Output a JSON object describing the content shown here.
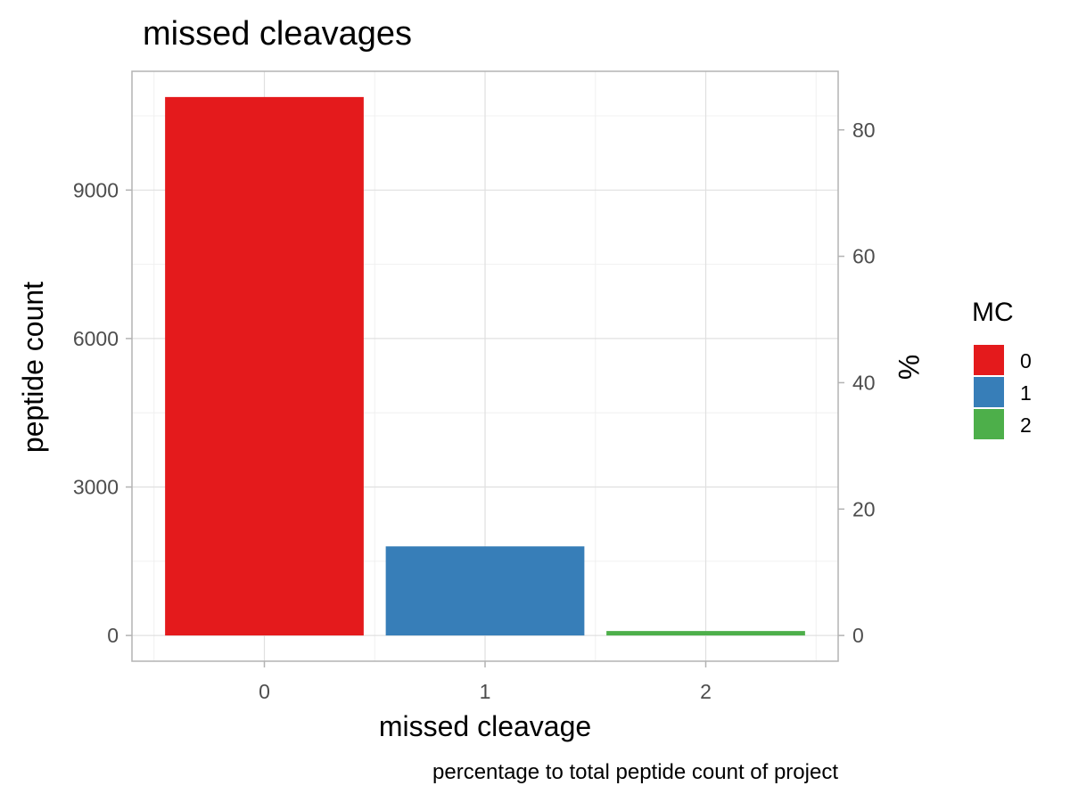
{
  "chart_data": {
    "type": "bar",
    "title": "missed cleavages",
    "xlabel": "missed cleavage",
    "ylabel": "peptide count",
    "ylabel_right": "%",
    "caption": "percentage to total peptide count of project",
    "categories": [
      "0",
      "1",
      "2"
    ],
    "values": [
      10880,
      1800,
      90
    ],
    "colors": [
      "#e41a1c",
      "#377eb8",
      "#4daf4a"
    ],
    "ylim": [
      -520,
      11400
    ],
    "yticks": [
      0,
      3000,
      6000,
      9000
    ],
    "yticks_right": [
      0,
      20,
      40,
      60,
      80
    ],
    "right_axis_total": 12770,
    "grid": true,
    "legend": {
      "title": "MC",
      "position": "right",
      "items": [
        "0",
        "1",
        "2"
      ]
    }
  }
}
